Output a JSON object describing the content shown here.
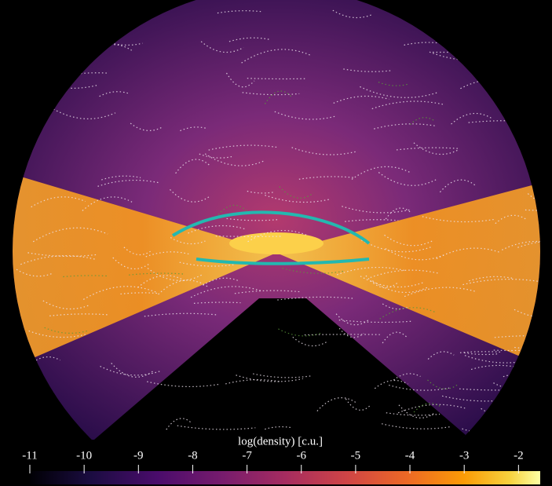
{
  "colorbar": {
    "label": "log(density) [c.u.]",
    "range": [
      -11,
      -1.6
    ],
    "ticks": [
      -11,
      -10,
      -9,
      -8,
      -7,
      -6,
      -5,
      -4,
      -3,
      -2
    ]
  }
}
